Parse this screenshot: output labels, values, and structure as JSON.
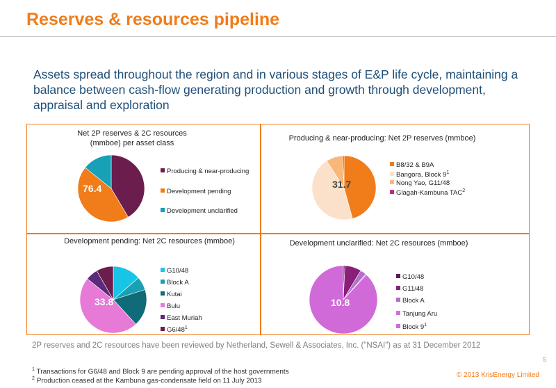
{
  "header": {
    "title": "Reserves & resources pipeline",
    "subtitle": "Assets spread throughout the region and in various stages of E&P life cycle, maintaining a balance between cash-flow generating production and growth through development, appraisal and exploration"
  },
  "chart_data": [
    {
      "type": "pie",
      "title": "Net 2P reserves & 2C resources (mmboe) per asset class",
      "total_label": "76.4",
      "series": [
        {
          "name": "Producing & near-producing",
          "value": 31.7,
          "color": "#6b1d4e"
        },
        {
          "name": "Development pending",
          "value": 33.8,
          "color": "#f07c1a"
        },
        {
          "name": "Development unclarified",
          "value": 10.9,
          "color": "#17a0b6"
        }
      ]
    },
    {
      "type": "pie",
      "title": "Producing & near-producing: Net 2P reserves (mmboe)",
      "total_label": "31.7",
      "series": [
        {
          "name": "B8/32 & B9A",
          "value": 14.5,
          "color": "#f07c1a"
        },
        {
          "name": "Bangora, Block 9",
          "sup": "1",
          "value": 14.3,
          "color": "#fbe1c9"
        },
        {
          "name": "Nong Yao, G11/48",
          "value": 2.7,
          "color": "#f9b77a"
        },
        {
          "name": "Glagah-Kambuna TAC",
          "sup": "2",
          "value": 0.2,
          "color": "#c2307d"
        }
      ]
    },
    {
      "type": "pie",
      "title": "Development pending: Net 2C resources (mmboe)",
      "total_label": "33.8",
      "series": [
        {
          "name": "G10/48",
          "value": 4.6,
          "color": "#19c5e6"
        },
        {
          "name": "Block A",
          "value": 2.2,
          "color": "#1aa0b5"
        },
        {
          "name": "Kutai",
          "value": 6.1,
          "color": "#0f6b78"
        },
        {
          "name": "Bulu",
          "value": 16.1,
          "color": "#e67ad6"
        },
        {
          "name": "East Muriah",
          "value": 2.0,
          "color": "#5c2a7a"
        },
        {
          "name": "G6/48",
          "sup": "1",
          "value": 2.8,
          "color": "#6b1d4e"
        }
      ]
    },
    {
      "type": "pie",
      "title": "Development unclarified: Net 2C resources (mmboe)",
      "total_label": "10.8",
      "series": [
        {
          "name": "G10/48",
          "value": 0.08,
          "color": "#5c1c4a"
        },
        {
          "name": "G11/48",
          "value": 0.85,
          "color": "#8a1f7a"
        },
        {
          "name": "Block A",
          "value": 0.3,
          "color": "#b070c8"
        },
        {
          "name": "Tanjung Aru",
          "value": 0.05,
          "color": "#d070d8"
        },
        {
          "name": "Block 9",
          "sup": "1",
          "value": 9.52,
          "color": "#d06ad8"
        }
      ]
    }
  ],
  "footer": {
    "review_note": "2P reserves and 2C resources have been reviewed by Netherland, Sewell & Associates, Inc. (\"NSAI\") as at 31 December 2012",
    "fn1_mark": "1",
    "fn1": "Transactions for G6/48 and Block 9 are pending approval of the host governments",
    "fn2_mark": "2",
    "fn2": "Production ceased at the Kambuna gas-condensate field on 11 July 2013",
    "page": "5",
    "copyright": "© 2013 KrisEnergy Limited"
  }
}
